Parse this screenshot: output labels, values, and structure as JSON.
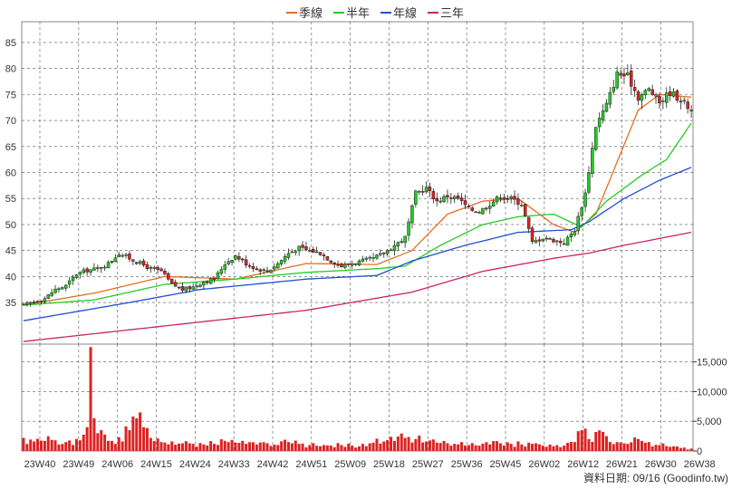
{
  "legend": [
    {
      "label": "季線",
      "color": "#e07020"
    },
    {
      "label": "半年",
      "color": "#22cc22"
    },
    {
      "label": "年線",
      "color": "#1f4fd0"
    },
    {
      "label": "三年",
      "color": "#cc2266"
    }
  ],
  "footer": "資料日期: 09/16  (Goodinfo.tw)",
  "chart_data": [
    {
      "type": "candlestick",
      "title": "",
      "x_tick_labels": [
        "23W40",
        "23W49",
        "24W06",
        "24W15",
        "24W24",
        "24W33",
        "24W42",
        "24W51",
        "25W09",
        "25W18",
        "25W27",
        "25W36",
        "25W45",
        "26W02",
        "26W12",
        "26W21",
        "26W30",
        "26W38"
      ],
      "y_axis": {
        "min": 27,
        "max": 89,
        "ticks": [
          35,
          40,
          45,
          50,
          55,
          60,
          65,
          70,
          75,
          80,
          85
        ],
        "grid": true
      },
      "up_color": "#22cc22",
      "down_color": "#dd2222",
      "close_anchors": [
        [
          0,
          34.5
        ],
        [
          3,
          35.2
        ],
        [
          6,
          35.8
        ],
        [
          9,
          37.5
        ],
        [
          12,
          38.2
        ],
        [
          15,
          40.5
        ],
        [
          18,
          41.2
        ],
        [
          21,
          41.5
        ],
        [
          24,
          42.5
        ],
        [
          27,
          44.5
        ],
        [
          30,
          43.5
        ],
        [
          33,
          42.5
        ],
        [
          36,
          41.5
        ],
        [
          39,
          41.0
        ],
        [
          42,
          38.5
        ],
        [
          45,
          37.5
        ],
        [
          48,
          38.0
        ],
        [
          51,
          39.0
        ],
        [
          54,
          39.5
        ],
        [
          57,
          42.5
        ],
        [
          60,
          44.0
        ],
        [
          63,
          42.5
        ],
        [
          66,
          41.5
        ],
        [
          69,
          41.0
        ],
        [
          72,
          42.5
        ],
        [
          75,
          44.5
        ],
        [
          78,
          45.5
        ],
        [
          81,
          45.0
        ],
        [
          84,
          44.5
        ],
        [
          87,
          43.0
        ],
        [
          90,
          42.0
        ],
        [
          93,
          42.5
        ],
        [
          96,
          43.0
        ],
        [
          99,
          43.5
        ],
        [
          102,
          44.5
        ],
        [
          105,
          46.0
        ],
        [
          108,
          47.5
        ],
        [
          111,
          56.0
        ],
        [
          114,
          57.0
        ],
        [
          117,
          54.5
        ],
        [
          120,
          55.5
        ],
        [
          123,
          55.0
        ],
        [
          126,
          53.0
        ],
        [
          129,
          52.5
        ],
        [
          132,
          54.0
        ],
        [
          135,
          55.5
        ],
        [
          138,
          55.0
        ],
        [
          141,
          54.0
        ],
        [
          144,
          46.5
        ],
        [
          147,
          47.5
        ],
        [
          150,
          47.0
        ],
        [
          153,
          46.5
        ],
        [
          156,
          49.0
        ],
        [
          159,
          56.0
        ],
        [
          162,
          69.0
        ],
        [
          165,
          73.0
        ],
        [
          168,
          79.0
        ],
        [
          171,
          78.5
        ],
        [
          174,
          74.5
        ],
        [
          177,
          76.0
        ],
        [
          180,
          73.5
        ],
        [
          183,
          75.5
        ],
        [
          186,
          74.0
        ],
        [
          189,
          72.0
        ]
      ],
      "ma_series": [
        {
          "name": "季線",
          "color": "#e07020",
          "anchors": [
            [
              0,
              34.5
            ],
            [
              20,
              36.8
            ],
            [
              40,
              40.0
            ],
            [
              60,
              39.5
            ],
            [
              80,
              42.5
            ],
            [
              100,
              42.3
            ],
            [
              110,
              45.0
            ],
            [
              120,
              52.0
            ],
            [
              130,
              54.5
            ],
            [
              140,
              55.0
            ],
            [
              150,
              50.0
            ],
            [
              156,
              48.5
            ],
            [
              162,
              52.0
            ],
            [
              168,
              62.0
            ],
            [
              174,
              72.0
            ],
            [
              180,
              75.0
            ],
            [
              189,
              74.5
            ]
          ]
        },
        {
          "name": "半年",
          "color": "#22cc22",
          "anchors": [
            [
              0,
              34.5
            ],
            [
              20,
              35.5
            ],
            [
              40,
              38.5
            ],
            [
              60,
              39.5
            ],
            [
              80,
              40.8
            ],
            [
              100,
              41.5
            ],
            [
              108,
              42.0
            ],
            [
              118,
              46.0
            ],
            [
              130,
              50.0
            ],
            [
              140,
              51.5
            ],
            [
              150,
              52.0
            ],
            [
              158,
              49.5
            ],
            [
              165,
              54.5
            ],
            [
              175,
              59.5
            ],
            [
              182,
              62.5
            ],
            [
              189,
              69.5
            ]
          ]
        },
        {
          "name": "年線",
          "color": "#1f4fd0",
          "anchors": [
            [
              0,
              31.5
            ],
            [
              30,
              35.0
            ],
            [
              50,
              37.5
            ],
            [
              80,
              39.5
            ],
            [
              100,
              40.2
            ],
            [
              110,
              43.0
            ],
            [
              125,
              46.0
            ],
            [
              140,
              48.5
            ],
            [
              155,
              49.0
            ],
            [
              160,
              50.5
            ],
            [
              170,
              55.0
            ],
            [
              180,
              58.5
            ],
            [
              189,
              61.0
            ]
          ]
        },
        {
          "name": "三年",
          "color": "#cc2266",
          "anchors": [
            [
              0,
              27.5
            ],
            [
              40,
              30.5
            ],
            [
              80,
              33.5
            ],
            [
              110,
              37.0
            ],
            [
              130,
              41.0
            ],
            [
              150,
              43.5
            ],
            [
              160,
              44.5
            ],
            [
              170,
              46.0
            ],
            [
              189,
              48.5
            ]
          ]
        }
      ]
    },
    {
      "type": "bar",
      "title": "",
      "y_axis": {
        "min": 0,
        "max": 18000,
        "ticks": [
          0,
          5000,
          10000,
          15000
        ],
        "tick_labels": [
          "0",
          "5,000",
          "10,000",
          "15,000"
        ]
      },
      "color": "#dd2222",
      "volume_anchors": [
        [
          0,
          2200
        ],
        [
          3,
          1600
        ],
        [
          6,
          1700
        ],
        [
          9,
          1800
        ],
        [
          12,
          1500
        ],
        [
          16,
          1800
        ],
        [
          18,
          4000
        ],
        [
          19,
          17500
        ],
        [
          20,
          5500
        ],
        [
          21,
          3000
        ],
        [
          24,
          1700
        ],
        [
          27,
          2300
        ],
        [
          30,
          3500
        ],
        [
          32,
          5500
        ],
        [
          33,
          6500
        ],
        [
          34,
          4000
        ],
        [
          36,
          2200
        ],
        [
          39,
          1500
        ],
        [
          42,
          1600
        ],
        [
          45,
          1300
        ],
        [
          48,
          1200
        ],
        [
          51,
          1100
        ],
        [
          54,
          1200
        ],
        [
          57,
          1700
        ],
        [
          60,
          1400
        ],
        [
          63,
          1200
        ],
        [
          66,
          1100
        ],
        [
          69,
          1300
        ],
        [
          72,
          1000
        ],
        [
          75,
          1500
        ],
        [
          78,
          1200
        ],
        [
          81,
          1000
        ],
        [
          84,
          800
        ],
        [
          87,
          900
        ],
        [
          90,
          1000
        ],
        [
          93,
          900
        ],
        [
          96,
          1200
        ],
        [
          99,
          1400
        ],
        [
          102,
          1600
        ],
        [
          105,
          1700
        ],
        [
          108,
          2200
        ],
        [
          111,
          2000
        ],
        [
          114,
          1600
        ],
        [
          117,
          1400
        ],
        [
          120,
          1300
        ],
        [
          123,
          1100
        ],
        [
          126,
          1000
        ],
        [
          129,
          900
        ],
        [
          132,
          1100
        ],
        [
          135,
          1300
        ],
        [
          138,
          1200
        ],
        [
          141,
          1100
        ],
        [
          144,
          1200
        ],
        [
          147,
          900
        ],
        [
          150,
          800
        ],
        [
          153,
          900
        ],
        [
          156,
          1500
        ],
        [
          158,
          3500
        ],
        [
          160,
          2000
        ],
        [
          162,
          3200
        ],
        [
          165,
          2500
        ],
        [
          168,
          1500
        ],
        [
          171,
          1200
        ],
        [
          174,
          2000
        ],
        [
          177,
          1500
        ],
        [
          180,
          1000
        ],
        [
          183,
          700
        ],
        [
          186,
          500
        ],
        [
          189,
          400
        ]
      ]
    }
  ]
}
